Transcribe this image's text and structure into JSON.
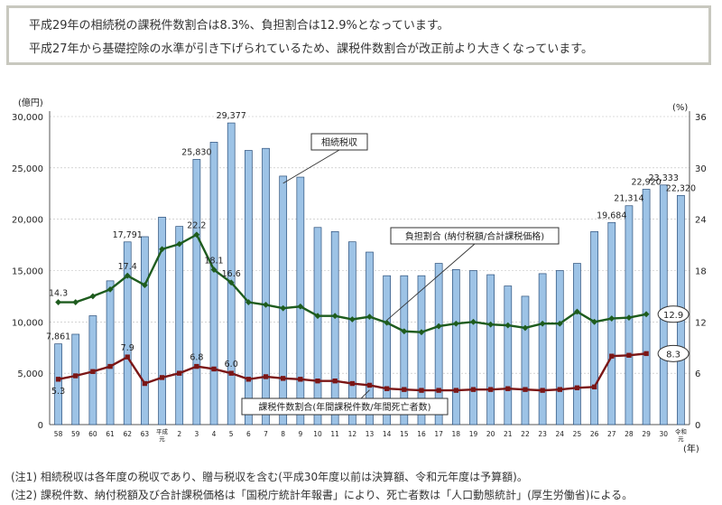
{
  "summary": {
    "line1": "平成29年の相続税の課税件数割合は8.3%、負担割合は12.9%となっています。",
    "line2": "平成27年から基礎控除の水準が引き下げられているため、課税件数割合が改正前より大きくなっています。"
  },
  "notes": {
    "note1": "(注1) 相続税収は各年度の税収であり、贈与税収を含む(平成30年度以前は決算額、令和元年度は予算額)。",
    "note2": "(注2) 課税件数、納付税額及び合計課税価格は「国税庁統計年報書」により、死亡者数は「人口動態統計」(厚生労働省)による。"
  },
  "chart_data": {
    "type": "bar",
    "left_unit": "(億円)",
    "right_unit": "(%)",
    "x_unit": "(年)",
    "left_ylim": [
      0,
      30000
    ],
    "right_ylim": [
      0,
      36
    ],
    "left_ticks": [
      "0",
      "5,000",
      "10,000",
      "15,000",
      "20,000",
      "25,000",
      "30,000"
    ],
    "right_ticks": [
      "0",
      "6",
      "12",
      "18",
      "24",
      "30",
      "36"
    ],
    "categories": [
      "58",
      "59",
      "60",
      "61",
      "62",
      "63",
      "平成元",
      "2",
      "3",
      "4",
      "5",
      "6",
      "7",
      "8",
      "9",
      "10",
      "11",
      "12",
      "13",
      "14",
      "15",
      "16",
      "17",
      "18",
      "19",
      "20",
      "21",
      "22",
      "23",
      "24",
      "25",
      "26",
      "27",
      "28",
      "29",
      "30",
      "令和元"
    ],
    "series": [
      {
        "name": "相続税収",
        "kind": "bar",
        "color": "#9dc3e6",
        "values": [
          7861,
          8800,
          10600,
          14000,
          17791,
          18300,
          20200,
          19300,
          25830,
          27500,
          29377,
          26700,
          26900,
          24200,
          24100,
          19200,
          18800,
          17800,
          16800,
          14500,
          14500,
          14500,
          15700,
          15100,
          15000,
          14600,
          13500,
          12500,
          14700,
          15000,
          15700,
          18800,
          19684,
          21314,
          22920,
          23333,
          22320
        ]
      },
      {
        "name": "負担割合(納付税額/合計課税価格)",
        "kind": "line",
        "color": "#1e5c1e",
        "values": [
          14.3,
          14.3,
          15.0,
          15.8,
          17.4,
          16.3,
          20.5,
          21.1,
          22.2,
          18.1,
          16.6,
          14.3,
          14.0,
          13.6,
          13.8,
          12.7,
          12.7,
          12.3,
          12.6,
          11.9,
          10.9,
          10.8,
          11.5,
          11.8,
          12.0,
          11.7,
          11.6,
          11.3,
          11.8,
          11.8,
          13.2,
          12.0,
          12.4,
          12.5,
          12.9,
          null,
          null
        ]
      },
      {
        "name": "課税件数割合(年間課税件数/年間死亡者数)",
        "kind": "line",
        "color": "#7b1616",
        "values": [
          5.3,
          5.7,
          6.2,
          6.8,
          7.9,
          4.8,
          5.5,
          6.0,
          6.8,
          6.5,
          6.0,
          5.3,
          5.6,
          5.4,
          5.3,
          5.1,
          5.1,
          4.8,
          4.6,
          4.2,
          4.1,
          4.0,
          4.0,
          4.0,
          4.1,
          4.1,
          4.2,
          4.1,
          4.0,
          4.1,
          4.3,
          4.4,
          8.0,
          8.1,
          8.3,
          null,
          null
        ]
      }
    ],
    "bar_labels": [
      {
        "index": 0,
        "text": "7,861"
      },
      {
        "index": 4,
        "text": "17,791"
      },
      {
        "index": 8,
        "text": "25,830"
      },
      {
        "index": 10,
        "text": "29,377"
      },
      {
        "index": 32,
        "text": "19,684"
      },
      {
        "index": 33,
        "text": "21,314"
      },
      {
        "index": 34,
        "text": "22,920"
      },
      {
        "index": 35,
        "text": "23,333"
      },
      {
        "index": 36,
        "text": "22,320"
      }
    ],
    "burden_labels": [
      {
        "index": 0,
        "text": "14.3"
      },
      {
        "index": 4,
        "text": "17.4"
      },
      {
        "index": 8,
        "text": "22.2"
      },
      {
        "index": 9,
        "text": "18.1"
      },
      {
        "index": 10,
        "text": "16.6"
      }
    ],
    "count_labels": [
      {
        "index": 0,
        "text": "5.3"
      },
      {
        "index": 4,
        "text": "7.9"
      },
      {
        "index": 8,
        "text": "6.8"
      },
      {
        "index": 10,
        "text": "6.0"
      }
    ],
    "end_labels": {
      "burden": "12.9",
      "count": "8.3"
    },
    "callouts": {
      "bar": "相続税収",
      "burden": "負担割合 (納付税額/合計課税価格)",
      "count": "課税件数割合(年間課税件数/年間死亡者数)"
    },
    "grid": true
  }
}
